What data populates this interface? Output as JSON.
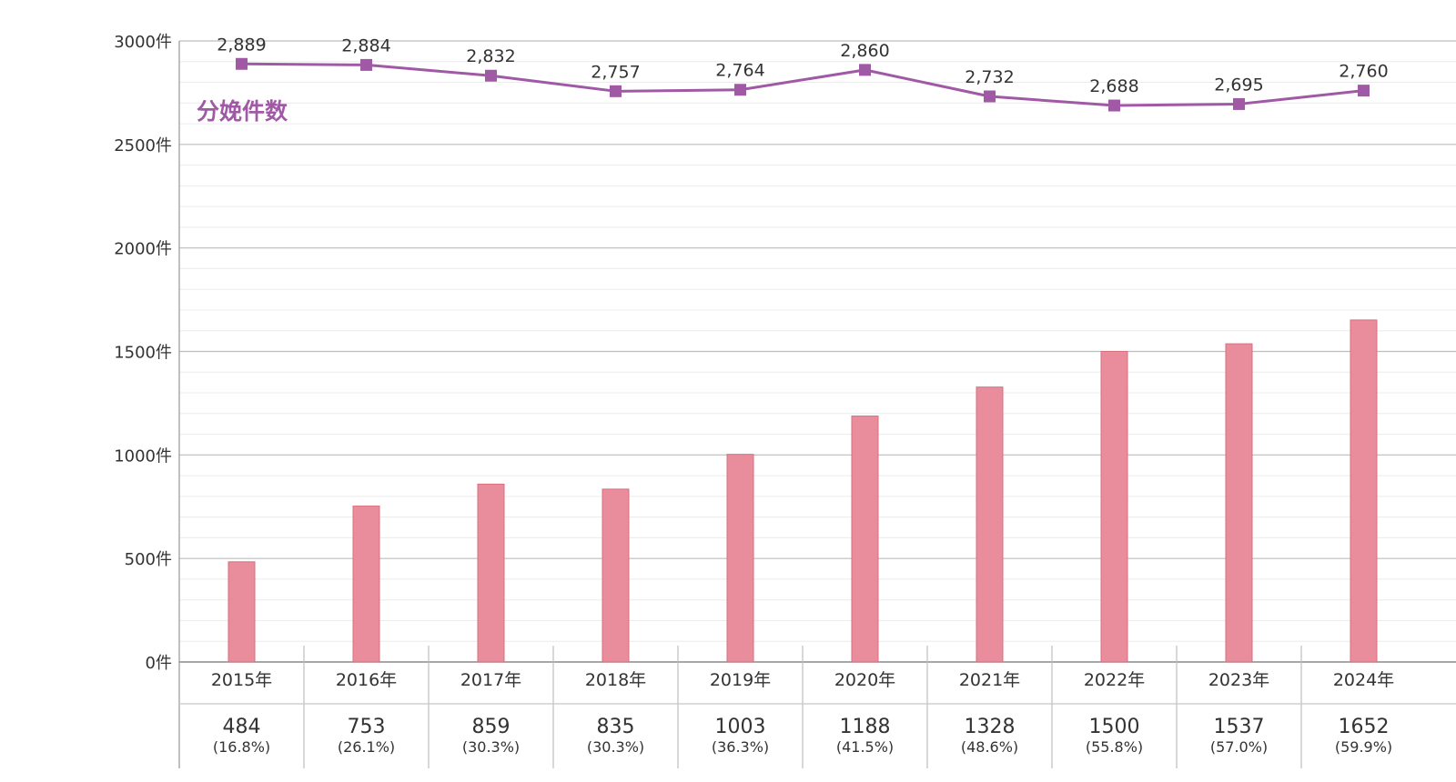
{
  "chart_data": {
    "type": "bar",
    "categories": [
      "2015年",
      "2016年",
      "2017年",
      "2018年",
      "2019年",
      "2020年",
      "2021年",
      "2022年",
      "2023年",
      "2024年"
    ],
    "y_ticks": [
      "0件",
      "500件",
      "1000件",
      "1500件",
      "2000件",
      "2500件",
      "3000件"
    ],
    "y_tick_values": [
      0,
      500,
      1000,
      1500,
      2000,
      2500,
      3000
    ],
    "ylim": [
      0,
      3000
    ],
    "grid": true,
    "series": [
      {
        "type": "bar",
        "color": "#e98c9c",
        "values": [
          484,
          753,
          859,
          835,
          1003,
          1188,
          1328,
          1500,
          1537,
          1652
        ],
        "value_labels": [
          "484",
          "753",
          "859",
          "835",
          "1003",
          "1188",
          "1328",
          "1500",
          "1537",
          "1652"
        ],
        "percent_labels": [
          "(16.8%)",
          "(26.1%)",
          "(30.3%)",
          "(30.3%)",
          "(36.3%)",
          "(41.5%)",
          "(48.6%)",
          "(55.8%)",
          "(57.0%)",
          "(59.9%)"
        ]
      },
      {
        "type": "line",
        "name": "分娩件数",
        "color": "#a05aa5",
        "values": [
          2889,
          2884,
          2832,
          2757,
          2764,
          2860,
          2732,
          2688,
          2695,
          2760
        ],
        "value_labels": [
          "2,889",
          "2,884",
          "2,832",
          "2,757",
          "2,764",
          "2,860",
          "2,732",
          "2,688",
          "2,695",
          "2,760"
        ]
      }
    ]
  }
}
